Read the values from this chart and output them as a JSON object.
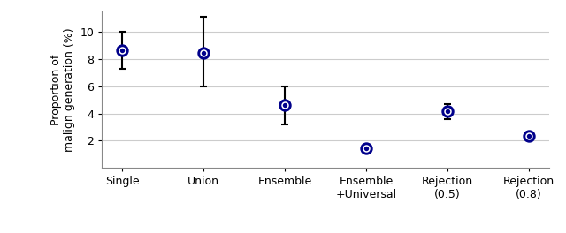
{
  "categories": [
    "Single",
    "Union",
    "Ensemble",
    "Ensemble\n+Universal",
    "Rejection\n(0.5)",
    "Rejection\n(0.8)"
  ],
  "values": [
    8.65,
    8.45,
    4.6,
    1.45,
    4.15,
    2.35
  ],
  "yerr_lower": [
    1.35,
    2.45,
    1.4,
    0.18,
    0.55,
    0.18
  ],
  "yerr_upper": [
    1.35,
    2.65,
    1.4,
    0.22,
    0.55,
    0.22
  ],
  "ylabel": "Proportion of\nmalign generation (%)",
  "ylim": [
    0,
    11.5
  ],
  "yticks": [
    2,
    4,
    6,
    8,
    10
  ],
  "errorbar_color": "black",
  "dot_facecolor": "#00008B",
  "dot_edgecolor": "#00008B",
  "marker_size": 5,
  "figsize": [
    6.4,
    2.64
  ],
  "dpi": 100,
  "background_color": "#ffffff",
  "grid_color": "#cccccc"
}
